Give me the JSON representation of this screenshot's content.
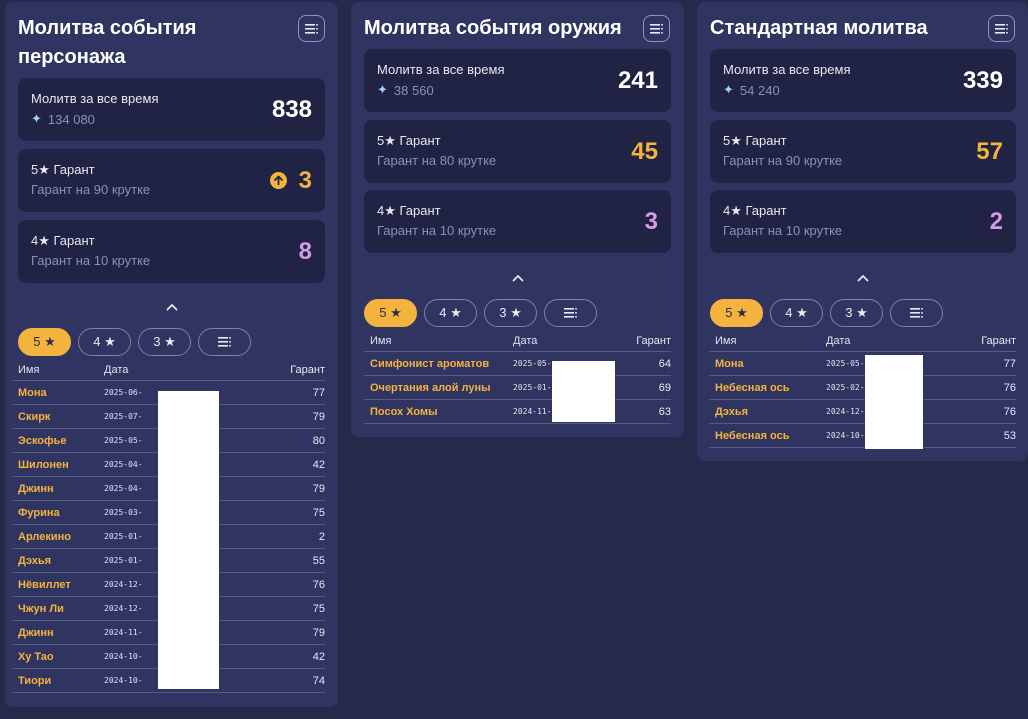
{
  "columns": [
    {
      "title": "Молитва события персонажа",
      "stats": [
        {
          "title": "Молитв за все время",
          "sub": "134 080",
          "value": "838"
        },
        {
          "title": "5★ Гарант",
          "sub": "Гарант на 90 крутке",
          "value": "3"
        },
        {
          "title": "4★ Гарант",
          "sub": "Гарант на 10 крутке",
          "value": "8"
        }
      ],
      "tabs": [
        "5 ★",
        "4 ★",
        "3 ★"
      ],
      "headers": {
        "name": "Имя",
        "date": "Дата",
        "pity": "Гарант"
      },
      "rows": [
        {
          "name": "Мона",
          "date": "2025-06-",
          "pity": "77"
        },
        {
          "name": "Скирк",
          "date": "2025-07-",
          "pity": "79"
        },
        {
          "name": "Эскофье",
          "date": "2025-05-",
          "pity": "80"
        },
        {
          "name": "Шилонен",
          "date": "2025-04-",
          "pity": "42"
        },
        {
          "name": "Джинн",
          "date": "2025-04-",
          "pity": "79"
        },
        {
          "name": "Фурина",
          "date": "2025-03-",
          "pity": "75"
        },
        {
          "name": "Арлекино",
          "date": "2025-01-",
          "pity": "2"
        },
        {
          "name": "Дэхья",
          "date": "2025-01-",
          "pity": "55"
        },
        {
          "name": "Нёвиллет",
          "date": "2024-12-",
          "pity": "76"
        },
        {
          "name": "Чжун Ли",
          "date": "2024-12-",
          "pity": "75"
        },
        {
          "name": "Джинн",
          "date": "2024-11-",
          "pity": "79"
        },
        {
          "name": "Ху Тао",
          "date": "2024-10-",
          "pity": "42"
        },
        {
          "name": "Тиори",
          "date": "2024-10-",
          "pity": "74"
        }
      ]
    },
    {
      "title": "Молитва события оружия",
      "stats": [
        {
          "title": "Молитв за все время",
          "sub": "38 560",
          "value": "241"
        },
        {
          "title": "5★ Гарант",
          "sub": "Гарант на 80 крутке",
          "value": "45"
        },
        {
          "title": "4★ Гарант",
          "sub": "Гарант на 10 крутке",
          "value": "3"
        }
      ],
      "tabs": [
        "5 ★",
        "4 ★",
        "3 ★"
      ],
      "headers": {
        "name": "Имя",
        "date": "Дата",
        "pity": "Гарант"
      },
      "rows": [
        {
          "name": "Симфонист ароматов",
          "date": "2025-05-",
          "pity": "64"
        },
        {
          "name": "Очертания алой луны",
          "date": "2025-01-",
          "pity": "69"
        },
        {
          "name": "Посох Хомы",
          "date": "2024-11-",
          "pity": "63"
        }
      ]
    },
    {
      "title": "Стандартная молитва",
      "stats": [
        {
          "title": "Молитв за все время",
          "sub": "54 240",
          "value": "339"
        },
        {
          "title": "5★ Гарант",
          "sub": "Гарант на 90 крутке",
          "value": "57"
        },
        {
          "title": "4★ Гарант",
          "sub": "Гарант на 10 крутке",
          "value": "2"
        }
      ],
      "tabs": [
        "5 ★",
        "4 ★",
        "3 ★"
      ],
      "headers": {
        "name": "Имя",
        "date": "Дата",
        "pity": "Гарант"
      },
      "rows": [
        {
          "name": "Мона",
          "date": "2025-05-",
          "pity": "77"
        },
        {
          "name": "Небесная ось",
          "date": "2025-02-",
          "pity": "76"
        },
        {
          "name": "Дэхья",
          "date": "2024-12-",
          "pity": "76"
        },
        {
          "name": "Небесная ось",
          "date": "2024-10-",
          "pity": "53"
        }
      ]
    }
  ],
  "colors": {
    "gold": "#f3b33d",
    "purple": "#d49be8",
    "panel": "#2f3460",
    "card": "#202343",
    "background": "#25294a"
  },
  "icons": {
    "menu": "list-menu-icon",
    "collapse": "chevron-up-icon",
    "currency": "sparkle-icon",
    "pity_up": "arrow-up-circle-icon"
  }
}
